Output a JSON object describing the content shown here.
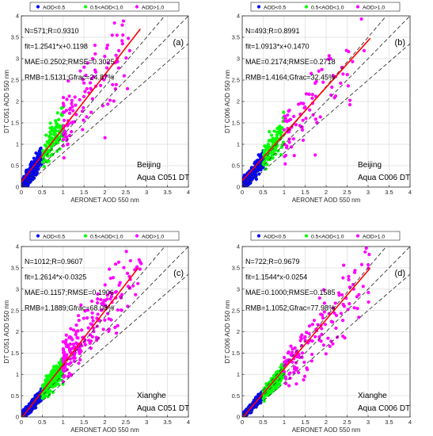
{
  "figure": {
    "legend_entries": [
      {
        "label": "AOD<0.5",
        "color": "#0000ff"
      },
      {
        "label": "0.5<AOD<1.0",
        "color": "#00ff00"
      },
      {
        "label": "AOD>1.0",
        "color": "#ff00ff"
      }
    ]
  },
  "chart_data": [
    {
      "type": "scatter",
      "panel_label": "(a)",
      "xlabel": "AERONET AOD 550 nm",
      "ylabel": "DT C051 AOD 550 nm",
      "xlim": [
        0,
        4
      ],
      "ylim": [
        0,
        4
      ],
      "x_ticks": [
        "0",
        "0.5",
        "1",
        "1.5",
        "2",
        "2.5",
        "3",
        "3.5",
        "4"
      ],
      "y_ticks": [
        "0",
        "0.5",
        "1",
        "1.5",
        "2",
        "2.5",
        "3",
        "3.5",
        "4"
      ],
      "grid": true,
      "legend_position": "top",
      "stats": [
        "N=571;R=0.9310",
        "fit=1.2541*x+0.1198",
        "MAE=0.2502;RMSE=0.3025",
        "RMB=1.5131;Gfrac=24.87%"
      ],
      "site": "Beijing",
      "product": "Aqua C051 DT",
      "fit": {
        "slope": 1.2541,
        "intercept": 0.1198,
        "x_range": [
          0,
          2.85
        ]
      },
      "seed": 11,
      "groups": [
        {
          "name": "AOD<0.5",
          "color": "#0000ff",
          "x_range": [
            0.02,
            0.5
          ],
          "n": 340,
          "ratio": 1.45,
          "spread": 0.22
        },
        {
          "name": "0.5<AOD<1.0",
          "color": "#00ff00",
          "x_range": [
            0.5,
            1.0
          ],
          "n": 120,
          "ratio": 1.45,
          "spread": 0.28
        },
        {
          "name": "AOD>1.0",
          "color": "#ff00ff",
          "x_range": [
            1.0,
            2.6
          ],
          "n": 111,
          "ratio": 1.35,
          "spread": 0.45
        }
      ]
    },
    {
      "type": "scatter",
      "panel_label": "(b)",
      "xlabel": "AERONET AOD 550 nm",
      "ylabel": "DT C006 AOD 550 nm",
      "xlim": [
        0,
        4
      ],
      "ylim": [
        0,
        4
      ],
      "x_ticks": [
        "0",
        "0.5",
        "1",
        "1.5",
        "2",
        "2.5",
        "3",
        "3.5",
        "4"
      ],
      "y_ticks": [
        "0",
        "0.5",
        "1",
        "1.5",
        "2",
        "2.5",
        "3",
        "3.5",
        "4"
      ],
      "grid": true,
      "legend_position": "top",
      "stats": [
        "N=493;R=0.8991",
        "fit=1.0913*x+0.1470",
        "MAE=0.2174;RMSE=0.2718",
        "RMB=1.4164;Gfrac=32.45%"
      ],
      "site": "Beijing",
      "product": "Aqua C006 DT",
      "fit": {
        "slope": 1.0913,
        "intercept": 0.147,
        "x_range": [
          0,
          3.05
        ]
      },
      "seed": 23,
      "groups": [
        {
          "name": "AOD<0.5",
          "color": "#0000ff",
          "x_range": [
            0.02,
            0.5
          ],
          "n": 300,
          "ratio": 1.35,
          "spread": 0.2
        },
        {
          "name": "0.5<AOD<1.0",
          "color": "#00ff00",
          "x_range": [
            0.5,
            1.0
          ],
          "n": 110,
          "ratio": 1.3,
          "spread": 0.25
        },
        {
          "name": "AOD>1.0",
          "color": "#ff00ff",
          "x_range": [
            1.0,
            3.1
          ],
          "n": 83,
          "ratio": 1.15,
          "spread": 0.4
        }
      ]
    },
    {
      "type": "scatter",
      "panel_label": "(c)",
      "xlabel": "AERONET AOD 550 nm",
      "ylabel": "DT C051 AOD 550 nm",
      "xlim": [
        0,
        4
      ],
      "ylim": [
        0,
        4
      ],
      "x_ticks": [
        "0",
        "0.5",
        "1",
        "1.5",
        "2",
        "2.5",
        "3",
        "3.5",
        "4"
      ],
      "y_ticks": [
        "0",
        "0.5",
        "1",
        "1.5",
        "2",
        "2.5",
        "3",
        "3.5",
        "4"
      ],
      "grid": true,
      "legend_position": "top",
      "stats": [
        "N=1012;R=0.9607",
        "fit=1.2614*x-0.0325",
        "MAE=0.1157;RMSE=0.1906",
        "RMB=1.1889;Gfrac=68.08%"
      ],
      "site": "Xianghe",
      "product": "Aqua C051 DT",
      "fit": {
        "slope": 1.2614,
        "intercept": -0.0325,
        "x_range": [
          0,
          2.8
        ]
      },
      "seed": 37,
      "groups": [
        {
          "name": "AOD<0.5",
          "color": "#0000ff",
          "x_range": [
            0.02,
            0.5
          ],
          "n": 560,
          "ratio": 1.1,
          "spread": 0.12
        },
        {
          "name": "0.5<AOD<1.0",
          "color": "#00ff00",
          "x_range": [
            0.5,
            1.0
          ],
          "n": 250,
          "ratio": 1.2,
          "spread": 0.18
        },
        {
          "name": "AOD>1.0",
          "color": "#ff00ff",
          "x_range": [
            1.0,
            2.9
          ],
          "n": 202,
          "ratio": 1.25,
          "spread": 0.35
        }
      ]
    },
    {
      "type": "scatter",
      "panel_label": "(d)",
      "xlabel": "AERONET AOD 550 nm",
      "ylabel": "DT C006 AOD 550 nm",
      "xlim": [
        0,
        4
      ],
      "ylim": [
        0,
        4
      ],
      "x_ticks": [
        "0",
        "0.5",
        "1",
        "1.5",
        "2",
        "2.5",
        "3",
        "3.5",
        "4"
      ],
      "y_ticks": [
        "0",
        "0.5",
        "1",
        "1.5",
        "2",
        "2.5",
        "3",
        "3.5",
        "4"
      ],
      "grid": true,
      "legend_position": "top",
      "stats": [
        "N=722;R=0.9679",
        "fit=1.1544*x-0.0254",
        "MAE=0.1000;RMSE=0.1585",
        "RMB=1.1052;Gfrac=77.98%"
      ],
      "site": "Xianghe",
      "product": "Aqua C006 DT",
      "fit": {
        "slope": 1.1544,
        "intercept": -0.0254,
        "x_range": [
          0,
          3.05
        ]
      },
      "seed": 53,
      "groups": [
        {
          "name": "AOD<0.5",
          "color": "#0000ff",
          "x_range": [
            0.02,
            0.5
          ],
          "n": 400,
          "ratio": 1.05,
          "spread": 0.1
        },
        {
          "name": "0.5<AOD<1.0",
          "color": "#00ff00",
          "x_range": [
            0.5,
            1.0
          ],
          "n": 180,
          "ratio": 1.1,
          "spread": 0.15
        },
        {
          "name": "AOD>1.0",
          "color": "#ff00ff",
          "x_range": [
            1.0,
            3.1
          ],
          "n": 142,
          "ratio": 1.12,
          "spread": 0.32
        }
      ]
    }
  ]
}
